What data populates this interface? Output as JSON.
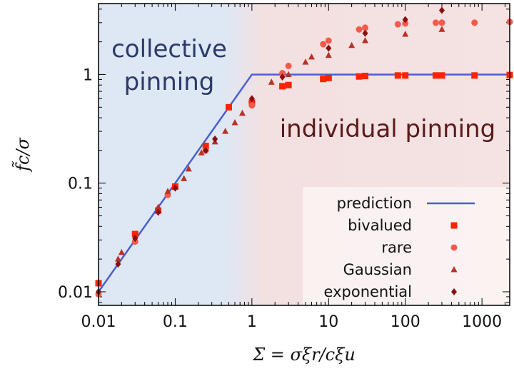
{
  "chart_data": {
    "type": "scatter",
    "xlabel": "Σ = σξr/cξu",
    "ylabel": "f̃c/σ",
    "xscale": "log",
    "yscale": "log",
    "xlim": [
      0.01,
      2300
    ],
    "ylim": [
      0.0075,
      4.5
    ],
    "x_ticks": [
      0.01,
      0.1,
      1,
      10,
      100,
      1000
    ],
    "x_tick_labels": [
      "0.01",
      "0.1",
      "1",
      "10",
      "100",
      "1000"
    ],
    "y_ticks": [
      0.01,
      0.1,
      1
    ],
    "y_tick_labels": [
      "0.01",
      "0.1",
      "1"
    ],
    "region_labels": {
      "left": [
        "collective",
        "pinning"
      ],
      "right": "individual pinning"
    },
    "colors": {
      "left_region": "#dde8f4",
      "right_region": "#f4e0e0",
      "prediction": "#4a5fd0",
      "bivalued": "#ff2200",
      "rare": "#f55a4a",
      "gaussian": "#b83228",
      "exponential": "#8a0f0f",
      "left_text": "#2c3a6a",
      "right_text": "#5a1a1a"
    },
    "legend_position": "bottom-right",
    "series": [
      {
        "name": "prediction",
        "marker": "line",
        "points": [
          [
            0.01,
            0.01
          ],
          [
            1,
            1
          ],
          [
            2300,
            1
          ]
        ]
      },
      {
        "name": "bivalued",
        "marker": "square",
        "points": [
          [
            0.01,
            0.012
          ],
          [
            0.03,
            0.034
          ],
          [
            0.06,
            0.056
          ],
          [
            0.1,
            0.093
          ],
          [
            0.25,
            0.22
          ],
          [
            0.5,
            0.5
          ],
          [
            1,
            0.55
          ],
          [
            2.5,
            0.78
          ],
          [
            3,
            0.8
          ],
          [
            8.5,
            0.91
          ],
          [
            10,
            0.93
          ],
          [
            25,
            0.96
          ],
          [
            30,
            0.97
          ],
          [
            80,
            0.98
          ],
          [
            100,
            0.98
          ],
          [
            250,
            0.98
          ],
          [
            300,
            0.98
          ],
          [
            800,
            0.98
          ],
          [
            2300,
            0.99
          ]
        ]
      },
      {
        "name": "rare",
        "marker": "circle",
        "points": [
          [
            0.01,
            0.0095
          ],
          [
            0.03,
            0.029
          ],
          [
            0.08,
            0.078
          ],
          [
            0.25,
            0.2
          ],
          [
            1,
            0.52
          ],
          [
            2.5,
            1.03
          ],
          [
            3,
            1.2
          ],
          [
            8.5,
            1.9
          ],
          [
            10,
            2.05
          ],
          [
            25,
            2.6
          ],
          [
            30,
            2.7
          ],
          [
            80,
            2.9
          ],
          [
            100,
            2.95
          ],
          [
            250,
            3.0
          ],
          [
            300,
            3.0
          ],
          [
            800,
            3.0
          ],
          [
            2300,
            3.05
          ]
        ]
      },
      {
        "name": "Gaussian",
        "marker": "triangle",
        "points": [
          [
            0.018,
            0.02
          ],
          [
            0.02,
            0.023
          ],
          [
            0.06,
            0.06
          ],
          [
            0.08,
            0.084
          ],
          [
            0.13,
            0.11
          ],
          [
            0.15,
            0.135
          ],
          [
            0.22,
            0.19
          ],
          [
            0.33,
            0.24
          ],
          [
            0.45,
            0.3
          ],
          [
            0.6,
            0.36
          ],
          [
            0.75,
            0.44
          ],
          [
            1.8,
            0.85
          ],
          [
            3,
            1.0
          ],
          [
            5,
            1.3
          ],
          [
            6,
            1.45
          ],
          [
            10,
            1.5
          ],
          [
            20,
            1.85
          ],
          [
            30,
            2.05
          ],
          [
            100,
            2.35
          ],
          [
            300,
            2.6
          ]
        ]
      },
      {
        "name": "exponential",
        "marker": "diamond",
        "points": [
          [
            0.01,
            0.01
          ],
          [
            0.018,
            0.018
          ],
          [
            0.03,
            0.031
          ],
          [
            0.06,
            0.054
          ],
          [
            0.1,
            0.09
          ],
          [
            0.25,
            0.2
          ],
          [
            0.33,
            0.255
          ],
          [
            1,
            0.6
          ],
          [
            2.5,
            0.95
          ],
          [
            10,
            1.75
          ],
          [
            30,
            2.4
          ],
          [
            100,
            3.2
          ],
          [
            300,
            3.9
          ]
        ]
      }
    ]
  }
}
